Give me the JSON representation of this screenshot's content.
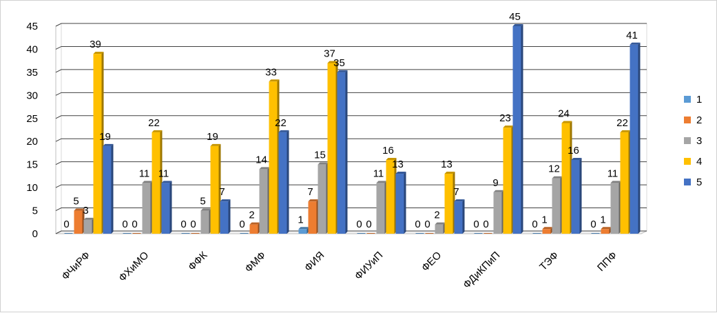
{
  "chart_data": {
    "type": "bar",
    "title": "",
    "xlabel": "",
    "ylabel": "",
    "ylim": [
      0,
      45
    ],
    "yticks": [
      0,
      5,
      10,
      15,
      20,
      25,
      30,
      35,
      40,
      45
    ],
    "grid": true,
    "legend_position": "right",
    "categories": [
      "ФЧиРФ",
      "ФХиМО",
      "ФФК",
      "ФМФ",
      "ФИЯ",
      "ФИУиП",
      "ФЕО",
      "ФДиКПиП",
      "ТЭФ",
      "ППФ"
    ],
    "series": [
      {
        "name": "1",
        "color": "#5b9bd5",
        "values": [
          0,
          0,
          0,
          0,
          1,
          0,
          0,
          0,
          0,
          0
        ]
      },
      {
        "name": "2",
        "color": "#ed7d31",
        "values": [
          5,
          0,
          0,
          2,
          7,
          0,
          0,
          0,
          1,
          1
        ]
      },
      {
        "name": "3",
        "color": "#a5a5a5",
        "values": [
          3,
          11,
          5,
          14,
          15,
          11,
          2,
          9,
          12,
          11
        ]
      },
      {
        "name": "4",
        "color": "#ffc000",
        "values": [
          39,
          22,
          19,
          33,
          37,
          16,
          13,
          23,
          24,
          22
        ]
      },
      {
        "name": "5",
        "color": "#4472c4",
        "values": [
          19,
          11,
          7,
          22,
          35,
          13,
          7,
          45,
          16,
          41
        ]
      }
    ]
  }
}
